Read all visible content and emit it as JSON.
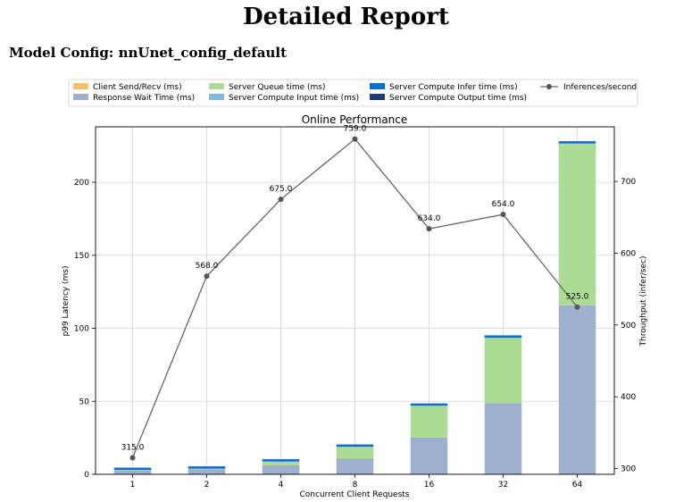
{
  "report": {
    "title": "Detailed Report",
    "model_config": "Model Config: nnUnet_config_default"
  },
  "chart_data": {
    "type": "bar",
    "title": "Online Performance",
    "xlabel": "Concurrent Client Requests",
    "ylabel": "p99 Latency (ms)",
    "y2label": "Throughput (infer/sec)",
    "categories": [
      "1",
      "2",
      "4",
      "8",
      "16",
      "32",
      "64"
    ],
    "ylim": [
      0,
      238
    ],
    "y2lim": [
      292,
      776
    ],
    "yticks": [
      0,
      50,
      100,
      150,
      200
    ],
    "y2ticks": [
      300,
      400,
      500,
      600,
      700
    ],
    "grid": true,
    "legend_position": "top",
    "stacked": true,
    "series": [
      {
        "name": "Client Send/Recv (ms)",
        "color": "#f6bf6d",
        "values": [
          0.1,
          0.1,
          0.1,
          0.2,
          0.2,
          0.3,
          0.3
        ]
      },
      {
        "name": "Response Wait Time (ms)",
        "color": "#9fb0cf",
        "values": [
          2.5,
          3.3,
          6.0,
          10.5,
          25.0,
          48.5,
          115.5
        ]
      },
      {
        "name": "Server Queue time (ms)",
        "color": "#acdc93",
        "values": [
          0.2,
          0.3,
          2.5,
          8.0,
          21.5,
          44.5,
          110.5
        ]
      },
      {
        "name": "Server Compute Input time (ms)",
        "color": "#81b8e0",
        "values": [
          0.2,
          0.2,
          0.2,
          0.2,
          0.3,
          0.3,
          0.3
        ]
      },
      {
        "name": "Server Compute Infer time (ms)",
        "color": "#0e6fc8",
        "values": [
          1.5,
          1.5,
          1.5,
          1.5,
          1.5,
          1.5,
          1.5
        ]
      },
      {
        "name": "Server Compute Output time (ms)",
        "color": "#1e3d73",
        "values": [
          0.1,
          0.1,
          0.1,
          0.1,
          0.1,
          0.1,
          0.1
        ]
      }
    ],
    "line_series": {
      "name": "Inferences/second",
      "color": "#666666",
      "values": [
        315.0,
        568.0,
        675.0,
        759.0,
        634.0,
        654.0,
        525.0
      ],
      "labels": [
        "315.0",
        "568.0",
        "675.0",
        "759.0",
        "634.0",
        "654.0",
        "525.0"
      ]
    }
  }
}
